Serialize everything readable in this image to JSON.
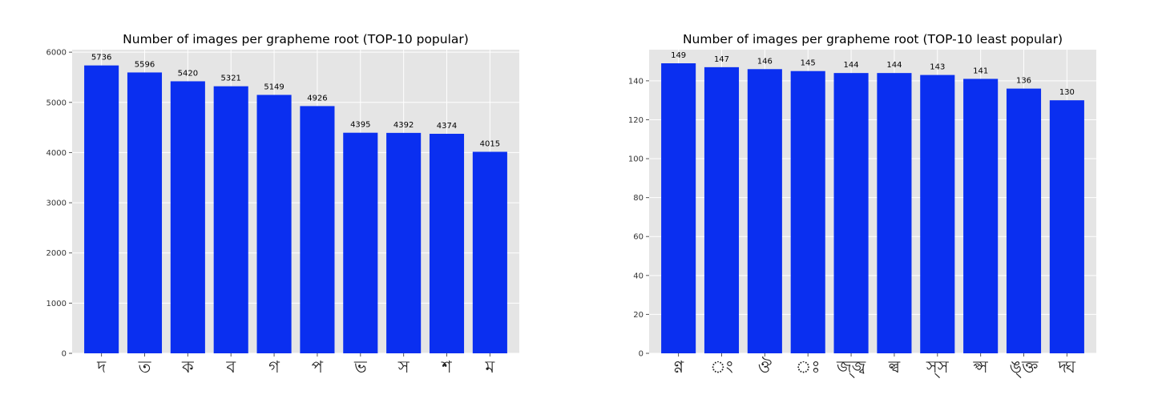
{
  "chart_data": [
    {
      "type": "bar",
      "title": "Number of images per grapheme root (TOP-10 popular)",
      "categories": [
        "দ",
        "ত",
        "ক",
        "ব",
        "গ",
        "প",
        "ভ",
        "স",
        "শ",
        "ম"
      ],
      "values": [
        5736,
        5596,
        5420,
        5321,
        5149,
        4926,
        4395,
        4392,
        4374,
        4015
      ],
      "ylim": [
        0,
        6050
      ],
      "yticks": [
        0,
        1000,
        2000,
        3000,
        4000,
        5000,
        6000
      ],
      "grid": true,
      "bar_color": "#0a2ff0",
      "background_color": "#e5e5e5"
    },
    {
      "type": "bar",
      "title": "Number of images per grapheme root (TOP-10 least popular)",
      "categories": [
        "ণ্ণ",
        "ং",
        "ঔ",
        "ঃ",
        "জ্জ্ব",
        "ল্ব",
        "স্স",
        "প্স",
        "ঙ্ক্ত",
        "দ্ঘ"
      ],
      "values": [
        149,
        147,
        146,
        145,
        144,
        144,
        143,
        141,
        136,
        130
      ],
      "ylim": [
        0,
        156
      ],
      "yticks": [
        0,
        20,
        40,
        60,
        80,
        100,
        120,
        140
      ],
      "grid": true,
      "bar_color": "#0a2ff0",
      "background_color": "#e5e5e5"
    }
  ]
}
